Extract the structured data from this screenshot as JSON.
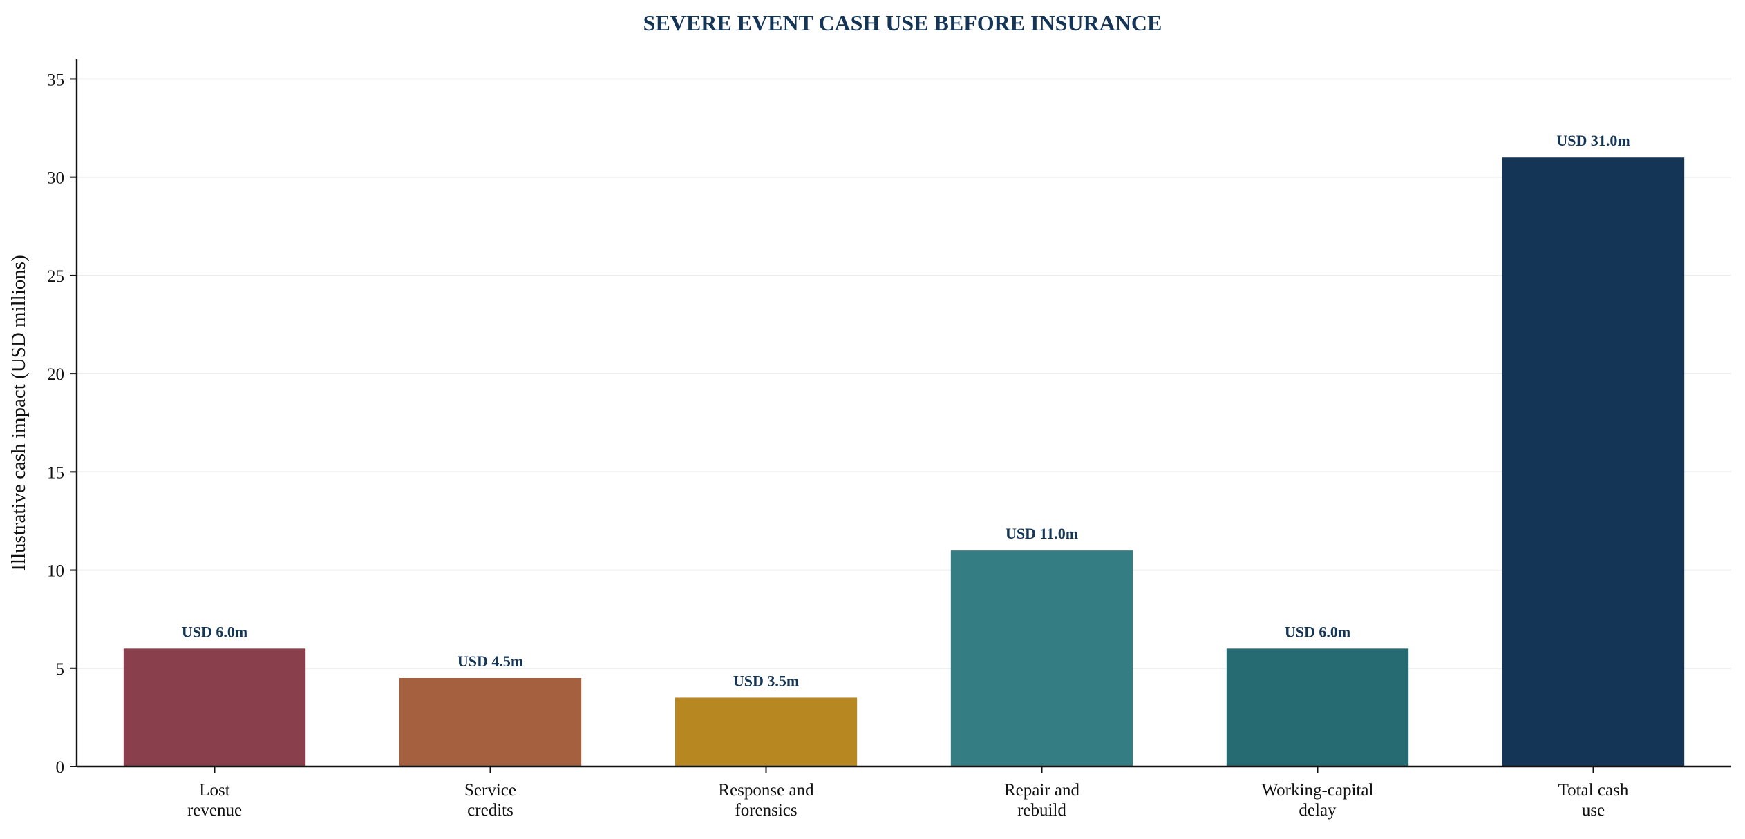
{
  "chart_data": {
    "type": "bar",
    "title": "SEVERE EVENT CASH USE BEFORE INSURANCE",
    "xlabel": "",
    "ylabel": "Illustrative cash impact (USD millions)",
    "ylim": [
      0,
      36
    ],
    "yticks": [
      0,
      5,
      10,
      15,
      20,
      25,
      30,
      35
    ],
    "grid": "horizontal",
    "legend": "none",
    "categories": [
      [
        "Lost",
        "revenue"
      ],
      [
        "Service",
        "credits"
      ],
      [
        "Response and",
        "forensics"
      ],
      [
        "Repair and",
        "rebuild"
      ],
      [
        "Working-capital",
        "delay"
      ],
      [
        "Total cash",
        "use"
      ]
    ],
    "values": [
      6.0,
      4.5,
      3.5,
      11.0,
      6.0,
      31.0
    ],
    "data_labels": [
      "USD 6.0m",
      "USD 4.5m",
      "USD 3.5m",
      "USD 11.0m",
      "USD 6.0m",
      "USD 31.0m"
    ],
    "colors": [
      "#8a3f4c",
      "#a5613f",
      "#b78822",
      "#347e83",
      "#256b71",
      "#143556"
    ],
    "title_color": "#143556",
    "label_color": "#143556"
  }
}
